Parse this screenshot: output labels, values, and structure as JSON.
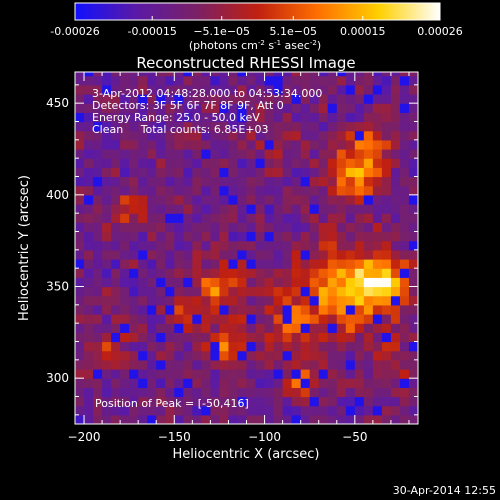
{
  "colorbar": {
    "tick_labels": [
      "-0.00026",
      "-0.00015",
      "−5.1e−05",
      "5.1e−05",
      "0.00015",
      "0.00026"
    ],
    "unit_label_parts": [
      "(photons cm",
      "-2",
      " s",
      "-1",
      " asec",
      "-2",
      ")"
    ]
  },
  "chart_data": {
    "type": "heatmap",
    "title": "Reconstructed RHESSI Image",
    "xlabel": "Heliocentric X (arcsec)",
    "ylabel": "Heliocentric Y (arcsec)",
    "xlim": [
      -205,
      -15
    ],
    "ylim": [
      275,
      467
    ],
    "x_ticks": [
      -200,
      -150,
      -100,
      -50
    ],
    "y_ticks": [
      300,
      350,
      400,
      450
    ],
    "x_tick_labels": [
      "−200",
      "−150",
      "−100",
      "−50"
    ],
    "y_tick_labels": [
      "300",
      "350",
      "400",
      "450"
    ],
    "annotations": [
      "3-Apr-2012 04:48:28.000 to 04:53:34.000",
      "Detectors: 3F 5F 6F 7F 8F 9F, Att 0",
      "Energy Range: 25.0 - 50.0 keV",
      "Clean     Total counts: 6.85E+03"
    ],
    "peak_label": "Position of Peak = [-50,416]",
    "peak_position": [
      -50,
      416
    ],
    "intensity_range": [
      -0.00026,
      0.00026
    ],
    "sources": [
      {
        "x": -60,
        "y": 348,
        "sigma": 18,
        "amp": 0.00022
      },
      {
        "x": -35,
        "y": 352,
        "sigma": 11,
        "amp": 0.00026
      },
      {
        "x": -50,
        "y": 412,
        "sigma": 10,
        "amp": 0.00025
      },
      {
        "x": -40,
        "y": 428,
        "sigma": 7,
        "amp": 0.00018
      },
      {
        "x": -125,
        "y": 350,
        "sigma": 10,
        "amp": 0.00019
      },
      {
        "x": -120,
        "y": 318,
        "sigma": 8,
        "amp": 0.00017
      },
      {
        "x": -90,
        "y": 330,
        "sigma": 9,
        "amp": 0.00014
      },
      {
        "x": -80,
        "y": 300,
        "sigma": 7,
        "amp": 0.00016
      },
      {
        "x": -175,
        "y": 392,
        "sigma": 7,
        "amp": 0.00013
      },
      {
        "x": -145,
        "y": 332,
        "sigma": 8,
        "amp": 0.00014
      },
      {
        "x": -95,
        "y": 428,
        "sigma": 9,
        "amp": 8e-05
      },
      {
        "x": -28,
        "y": 310,
        "sigma": 8,
        "amp": 0.00011
      },
      {
        "x": -185,
        "y": 320,
        "sigma": 10,
        "amp": 9e-05
      }
    ],
    "colormap_stops": [
      "#1010ff",
      "#5a1aa6",
      "#7a2066",
      "#c02010",
      "#ff7000",
      "#ffd000",
      "#ffffff"
    ]
  },
  "footer": {
    "timestamp": "30-Apr-2014 12:55"
  }
}
